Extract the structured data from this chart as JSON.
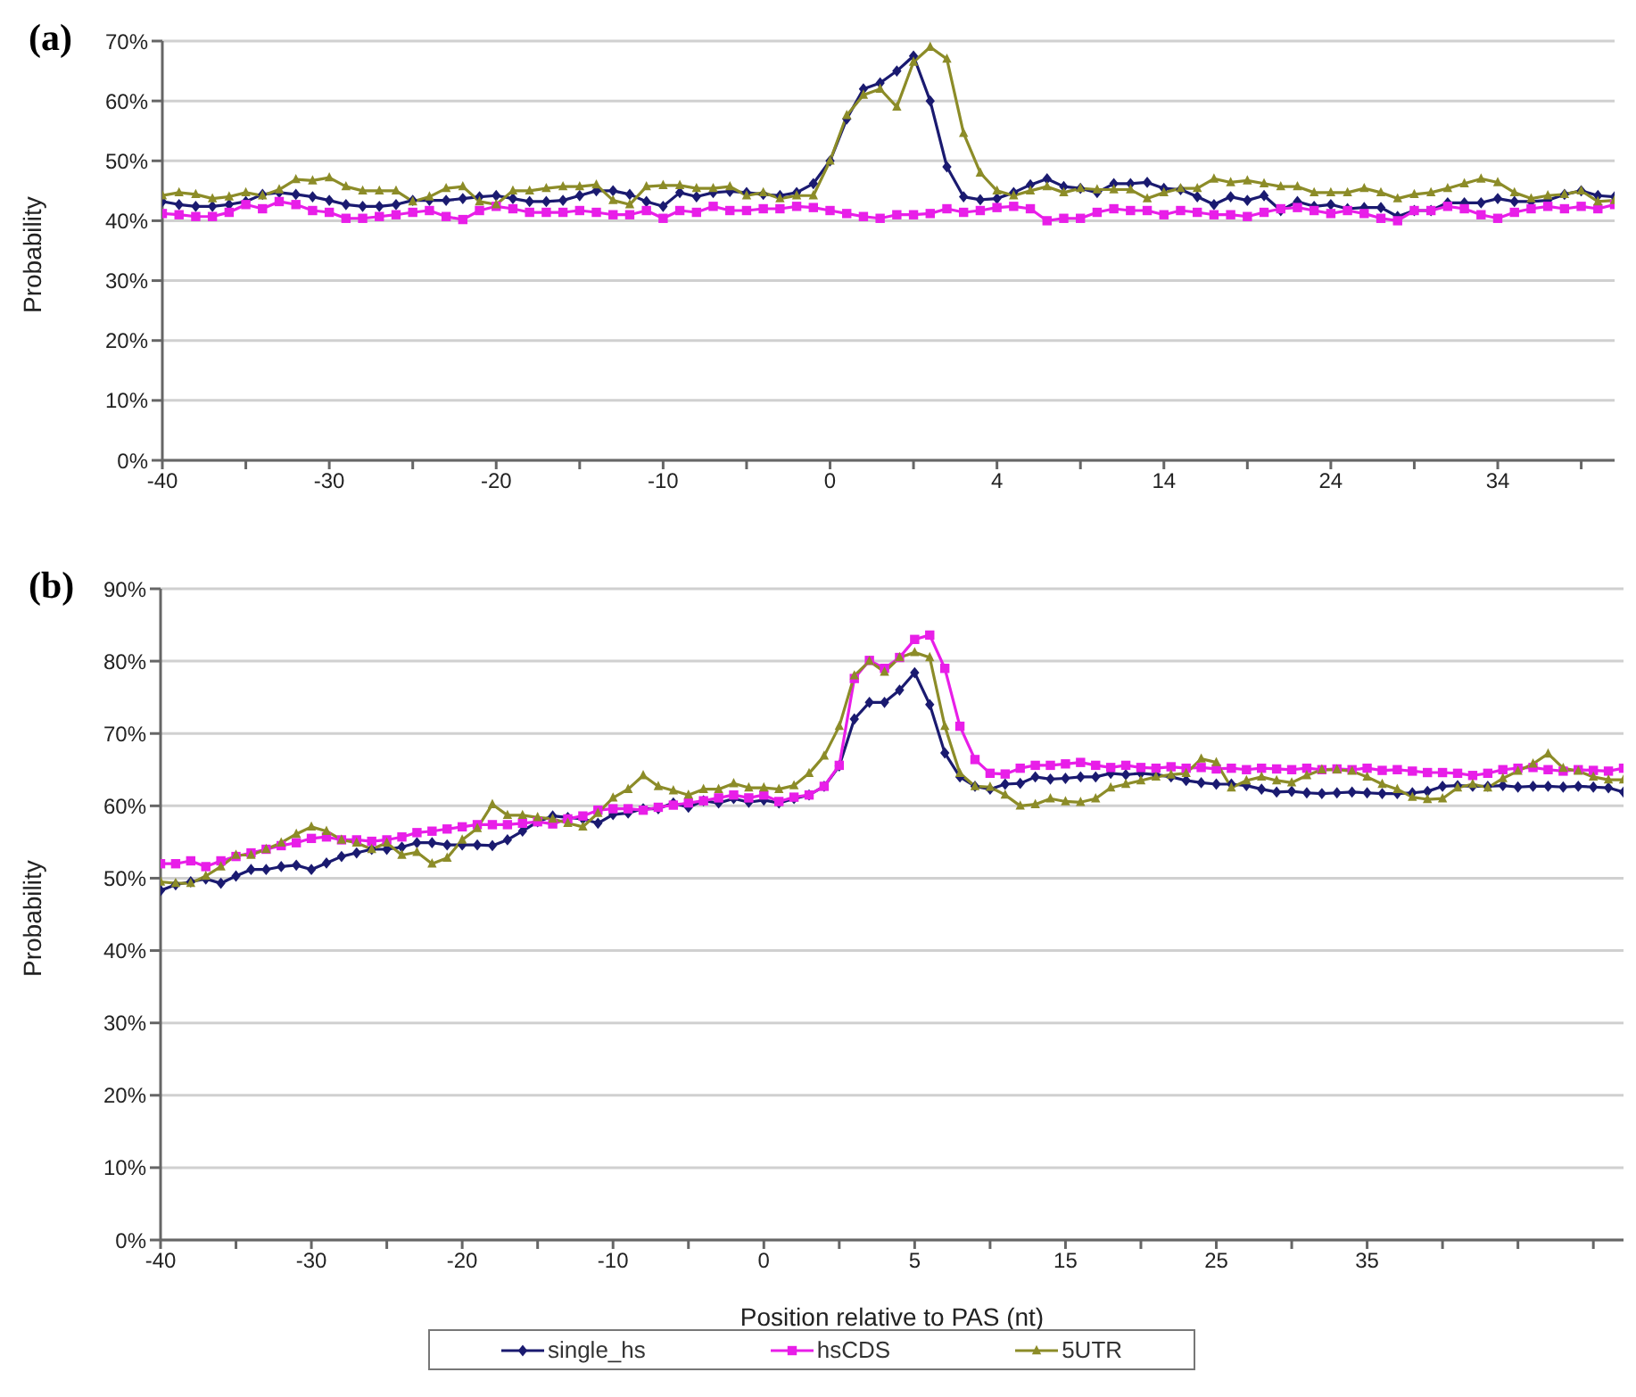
{
  "chart_data": [
    {
      "type": "line",
      "title": "(a)",
      "ylabel": "Probability",
      "categories": [
        "-40",
        null,
        null,
        null,
        null,
        null,
        null,
        null,
        null,
        null,
        "-30",
        null,
        null,
        null,
        null,
        null,
        null,
        null,
        null,
        null,
        "-20",
        null,
        null,
        null,
        null,
        null,
        null,
        null,
        null,
        null,
        "-10",
        null,
        null,
        null,
        null,
        null,
        null,
        null,
        null,
        null,
        "0",
        null,
        null,
        null,
        null,
        null,
        null,
        null,
        null,
        null,
        "4",
        null,
        null,
        null,
        null,
        null,
        null,
        null,
        null,
        null,
        "14",
        null,
        null,
        null,
        null,
        null,
        null,
        null,
        null,
        null,
        "24",
        null,
        null,
        null,
        null,
        null,
        null,
        null,
        null,
        null,
        "34",
        null,
        null,
        null,
        null,
        null,
        null,
        null
      ],
      "ylim": [
        0,
        70
      ],
      "yticks": [
        {
          "value": 0,
          "label": "0%"
        },
        {
          "value": 10,
          "label": "10%"
        },
        {
          "value": 20,
          "label": "20%"
        },
        {
          "value": 30,
          "label": "30%"
        },
        {
          "value": 40,
          "label": "40%"
        },
        {
          "value": 50,
          "label": "50%"
        },
        {
          "value": 60,
          "label": "60%"
        },
        {
          "value": 70,
          "label": "70%"
        }
      ],
      "grid": "y",
      "legend": false,
      "line_style": "solid",
      "series": [
        {
          "color": "#1a1a70",
          "marker": "diamond",
          "values": [
            43.2,
            42.7,
            42.4,
            42.4,
            42.7,
            43.2,
            44.4,
            44.7,
            44.4,
            44,
            43.4,
            42.7,
            42.4,
            42.4,
            42.7,
            43.4,
            43.4,
            43.4,
            43.7,
            44,
            44.2,
            43.7,
            43.2,
            43.2,
            43.4,
            44.2,
            45,
            45,
            44.4,
            43.2,
            42.4,
            44.7,
            44,
            44.7,
            44.9,
            44.7,
            44.4,
            44.2,
            44.7,
            46.2,
            50,
            57,
            62,
            63,
            65,
            67.5,
            60,
            49,
            44,
            43.5,
            43.7,
            44.7,
            46,
            47,
            45.7,
            45.4,
            44.7,
            46.2,
            46.2,
            46.4,
            45.4,
            45.2,
            44,
            42.7,
            44,
            43.4,
            44.2,
            41.7,
            43.2,
            42.4,
            42.7,
            42,
            42.2,
            42.2,
            40.7,
            41.7,
            41.7,
            43,
            43,
            43,
            43.7,
            43.2,
            43.2,
            43.4,
            44.4,
            45,
            44.2,
            44
          ]
        },
        {
          "color": "#e81ee8",
          "marker": "square",
          "values": [
            41.2,
            41,
            40.7,
            40.7,
            41.4,
            42.7,
            42,
            43.2,
            42.7,
            41.7,
            41.4,
            40.4,
            40.4,
            40.7,
            41,
            41.4,
            41.7,
            40.7,
            40.2,
            41.7,
            42.4,
            42,
            41.4,
            41.4,
            41.4,
            41.7,
            41.4,
            41,
            41,
            41.7,
            40.4,
            41.7,
            41.4,
            42.4,
            41.7,
            41.7,
            42,
            42,
            42.4,
            42.2,
            41.7,
            41.2,
            40.7,
            40.4,
            41,
            41,
            41.2,
            42,
            41.4,
            41.7,
            42.2,
            42.4,
            42,
            40,
            40.4,
            40.4,
            41.4,
            42,
            41.7,
            41.7,
            41,
            41.7,
            41.4,
            41,
            41,
            40.7,
            41.4,
            42,
            42.2,
            41.7,
            41.2,
            41.7,
            41.2,
            40.4,
            40,
            41.7,
            41.7,
            42.4,
            42,
            41,
            40.4,
            41.4,
            42,
            42.4,
            42,
            42.4,
            42,
            42.7
          ]
        },
        {
          "color": "#8c8c28",
          "marker": "triangle",
          "values": [
            44.2,
            44.7,
            44.4,
            43.7,
            44,
            44.7,
            44.2,
            45.2,
            46.9,
            46.7,
            47.2,
            45.7,
            45,
            45,
            45,
            43.2,
            44,
            45.4,
            45.7,
            43.2,
            42.7,
            45,
            45,
            45.4,
            45.7,
            45.7,
            46,
            43.4,
            42.7,
            45.7,
            45.9,
            45.9,
            45.4,
            45.4,
            45.7,
            44.2,
            44.7,
            43.7,
            44.2,
            44.2,
            50,
            57.6,
            61,
            62,
            59,
            66.5,
            69,
            67,
            54.6,
            48,
            45,
            44.2,
            45,
            45.7,
            44.7,
            45.4,
            45.2,
            45.2,
            45.2,
            43.7,
            44.7,
            45.4,
            45.4,
            47,
            46.4,
            46.7,
            46.2,
            45.7,
            45.7,
            44.7,
            44.7,
            44.7,
            45.4,
            44.7,
            43.7,
            44.4,
            44.7,
            45.4,
            46.2,
            47,
            46.4,
            44.7,
            43.7,
            44.2,
            44.4,
            45,
            43.2,
            43.4
          ]
        }
      ]
    },
    {
      "type": "line",
      "title": "(b)",
      "ylabel": "Probability",
      "xlabel": "Position relative to PAS (nt)",
      "categories": [
        "-40",
        null,
        null,
        null,
        null,
        null,
        null,
        null,
        null,
        null,
        "-30",
        null,
        null,
        null,
        null,
        null,
        null,
        null,
        null,
        null,
        "-20",
        null,
        null,
        null,
        null,
        null,
        null,
        null,
        null,
        null,
        "-10",
        null,
        null,
        null,
        null,
        null,
        null,
        null,
        null,
        null,
        "0",
        null,
        null,
        null,
        null,
        null,
        null,
        null,
        null,
        null,
        "5",
        null,
        null,
        null,
        null,
        null,
        null,
        null,
        null,
        null,
        "15",
        null,
        null,
        null,
        null,
        null,
        null,
        null,
        null,
        null,
        "25",
        null,
        null,
        null,
        null,
        null,
        null,
        null,
        null,
        null,
        "35",
        null,
        null,
        null,
        null,
        null,
        null,
        null,
        null,
        null,
        null,
        null,
        null,
        null,
        null,
        null,
        null,
        null
      ],
      "ylim": [
        0,
        90
      ],
      "yticks": [
        {
          "value": 0,
          "label": "0%"
        },
        {
          "value": 10,
          "label": "10%"
        },
        {
          "value": 20,
          "label": "20%"
        },
        {
          "value": 30,
          "label": "30%"
        },
        {
          "value": 40,
          "label": "40%"
        },
        {
          "value": 50,
          "label": "50%"
        },
        {
          "value": 60,
          "label": "60%"
        },
        {
          "value": 70,
          "label": "70%"
        },
        {
          "value": 80,
          "label": "80%"
        },
        {
          "value": 90,
          "label": "90%"
        }
      ],
      "grid": "y",
      "legend": "bottom",
      "line_style": "solid",
      "series": [
        {
          "name": "single_hs",
          "color": "#1a1a70",
          "marker": "diamond",
          "values": [
            48.3,
            49.1,
            49.5,
            49.9,
            49.3,
            50.3,
            51.2,
            51.2,
            51.6,
            51.8,
            51.2,
            52.1,
            53,
            53.5,
            54,
            54,
            54.3,
            54.9,
            54.9,
            54.6,
            54.6,
            54.6,
            54.5,
            55.3,
            56.5,
            57.8,
            58.6,
            58.4,
            58.2,
            57.6,
            58.8,
            59,
            59.6,
            59.6,
            60.4,
            59.8,
            60.7,
            60.4,
            61,
            60.5,
            60.8,
            60.4,
            61,
            61.5,
            62.7,
            65.5,
            72,
            74.3,
            74.3,
            76,
            78.4,
            74,
            67.3,
            64,
            62.7,
            62.3,
            63,
            63.1,
            64,
            63.7,
            63.8,
            64,
            64,
            64.5,
            64.3,
            64.5,
            64.3,
            64,
            63.5,
            63.2,
            63,
            63,
            62.8,
            62.3,
            61.9,
            62,
            61.8,
            61.7,
            61.8,
            61.9,
            61.8,
            61.7,
            61.7,
            61.8,
            62,
            62.7,
            62.8,
            62.7,
            62.7,
            62.8,
            62.6,
            62.7,
            62.7,
            62.6,
            62.7,
            62.6,
            62.5,
            61.9
          ]
        },
        {
          "name": "hsCDS",
          "color": "#e81ee8",
          "marker": "square",
          "values": [
            52,
            52,
            52.4,
            51.6,
            52.4,
            53,
            53.5,
            54,
            54.5,
            54.9,
            55.5,
            55.7,
            55.3,
            55.3,
            55.1,
            55.3,
            55.7,
            56.3,
            56.5,
            56.8,
            57.1,
            57.4,
            57.4,
            57.4,
            57.6,
            57.8,
            57.5,
            58.2,
            58.6,
            59.4,
            59.6,
            59.6,
            59.4,
            59.8,
            60.1,
            60.4,
            60.7,
            61.1,
            61.5,
            61.1,
            61.5,
            60.6,
            61.2,
            61.5,
            62.7,
            65.6,
            77.6,
            80.1,
            79,
            80.5,
            83,
            83.6,
            79,
            71,
            66.4,
            64.5,
            64.4,
            65.2,
            65.6,
            65.6,
            65.8,
            66,
            65.6,
            65.3,
            65.6,
            65.3,
            65.2,
            65.4,
            65.2,
            65.3,
            65.1,
            65.2,
            65,
            65.2,
            65.1,
            65,
            65.2,
            65,
            65.1,
            65,
            65.2,
            64.9,
            65,
            64.8,
            64.6,
            64.6,
            64.5,
            64.2,
            64.5,
            65,
            65.2,
            65.3,
            65,
            64.8,
            65,
            64.9,
            64.8,
            65.2
          ]
        },
        {
          "name": "5UTR",
          "color": "#8c8c28",
          "marker": "triangle",
          "values": [
            49.5,
            49.3,
            49.3,
            50.3,
            51.6,
            53.2,
            53.2,
            54,
            54.9,
            56.1,
            57.1,
            56.5,
            55.3,
            54.9,
            54,
            54.9,
            53.2,
            53.6,
            52,
            52.8,
            55.3,
            56.9,
            60.2,
            58.7,
            58.7,
            58.4,
            58.2,
            57.6,
            57.1,
            59,
            61.1,
            62.3,
            64.2,
            62.7,
            62.1,
            61.5,
            62.3,
            62.3,
            63.1,
            62.5,
            62.5,
            62.3,
            62.8,
            64.5,
            66.9,
            71,
            78,
            80,
            78.5,
            80.5,
            81.2,
            80.5,
            71,
            64.5,
            62.7,
            62.6,
            61.5,
            60,
            60.2,
            61,
            60.6,
            60.5,
            61,
            62.5,
            63,
            63.5,
            64,
            64.3,
            64.5,
            66.5,
            66,
            62.5,
            63.5,
            64,
            63.5,
            63.2,
            64.2,
            65,
            65,
            64.8,
            64,
            63,
            62.3,
            61.2,
            60.9,
            61,
            62.5,
            63,
            62.5,
            63.8,
            64.8,
            65.8,
            67.2,
            65.2,
            64.8,
            64,
            63.6,
            63.6
          ]
        }
      ]
    }
  ]
}
